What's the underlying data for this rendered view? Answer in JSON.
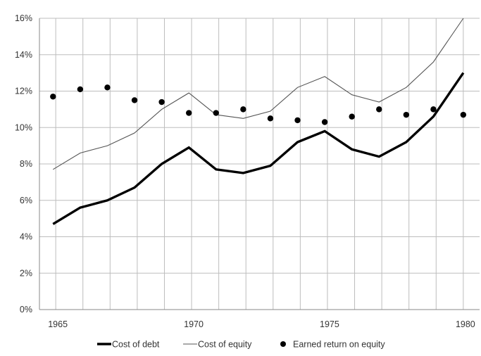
{
  "chart_data": {
    "type": "line",
    "title": "",
    "xlabel": "",
    "ylabel": "",
    "x": [
      1965,
      1966,
      1967,
      1968,
      1969,
      1970,
      1971,
      1972,
      1973,
      1974,
      1975,
      1976,
      1977,
      1978,
      1979,
      1980
    ],
    "x_ticks": [
      "1965",
      "1970",
      "1975",
      "1980"
    ],
    "x_tick_values": [
      1965,
      1970,
      1975,
      1980
    ],
    "xlim": [
      1964.4,
      1980.6
    ],
    "ylim": [
      0,
      16
    ],
    "y_ticks": [
      0,
      2,
      4,
      6,
      8,
      10,
      12,
      14,
      16
    ],
    "y_tick_labels": [
      "0%",
      "2%",
      "4%",
      "6%",
      "8%",
      "10%",
      "12%",
      "14%",
      "16%"
    ],
    "grid": "vertical-and-horizontal",
    "legend_position": "bottom",
    "series": [
      {
        "name": "Cost of debt",
        "style": "thick-line",
        "color": "#000000",
        "x": [
          1964.9,
          1965.9,
          1966.9,
          1967.9,
          1968.9,
          1969.9,
          1970.9,
          1971.9,
          1972.9,
          1973.9,
          1974.9,
          1975.9,
          1976.9,
          1977.9,
          1978.9,
          1980.0
        ],
        "values": [
          4.7,
          5.6,
          6.0,
          6.7,
          8.0,
          8.9,
          7.7,
          7.5,
          7.9,
          9.2,
          9.8,
          8.8,
          8.4,
          9.2,
          10.6,
          13.0
        ]
      },
      {
        "name": "Cost of equity",
        "style": "thin-line",
        "color": "#555555",
        "x": [
          1964.9,
          1965.9,
          1966.9,
          1967.9,
          1968.9,
          1969.9,
          1970.9,
          1971.9,
          1972.9,
          1973.9,
          1974.9,
          1975.9,
          1976.9,
          1977.9,
          1978.9,
          1980.0
        ],
        "values": [
          7.7,
          8.6,
          9.0,
          9.7,
          11.0,
          11.9,
          10.7,
          10.5,
          10.9,
          12.2,
          12.8,
          11.8,
          11.4,
          12.2,
          13.6,
          16.0
        ]
      },
      {
        "name": "Earned return on equity",
        "style": "markers",
        "color": "#000000",
        "x": [
          1964.9,
          1965.9,
          1966.9,
          1967.9,
          1968.9,
          1969.9,
          1970.9,
          1971.9,
          1972.9,
          1973.9,
          1974.9,
          1975.9,
          1976.9,
          1977.9,
          1978.9,
          1980.0
        ],
        "values": [
          11.7,
          12.1,
          12.2,
          11.5,
          11.4,
          10.8,
          10.8,
          11.0,
          10.5,
          10.4,
          10.3,
          10.6,
          11.0,
          10.7,
          11.0,
          10.7
        ]
      }
    ]
  }
}
